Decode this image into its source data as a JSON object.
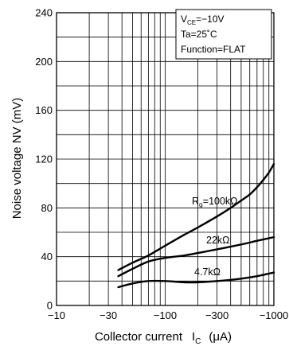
{
  "chart_data": {
    "type": "line",
    "x_scale": "log",
    "x_ticks": [
      -10,
      -30,
      -100,
      -300,
      -1000
    ],
    "x_tick_labels": [
      "−10",
      "−30",
      "−100",
      "−300",
      "−1000"
    ],
    "xlim": [
      -10,
      -1000
    ],
    "ylim": [
      0,
      240
    ],
    "y_ticks": [
      0,
      40,
      80,
      120,
      160,
      200,
      240
    ],
    "y_tick_labels": [
      "0",
      "40",
      "80",
      "120",
      "160",
      "200",
      "240"
    ],
    "xlabel_main": "Collector current",
    "xlabel_symbol": "I",
    "xlabel_subscript": "C",
    "xlabel_unit": "(μA)",
    "ylabel": "Noise voltage  NV  (mV)",
    "grid": true,
    "conditions": {
      "vce_prefix": "V",
      "vce_sub": "CE",
      "vce_value": "=−10V",
      "ta": "Ta=25˚C",
      "function": "Function=FLAT"
    },
    "series": [
      {
        "name_prefix": "R",
        "name_sub": "g",
        "name_value": "=100kΩ",
        "x": [
          -37,
          -50,
          -70,
          -100,
          -150,
          -200,
          -300,
          -400,
          -500,
          -600,
          -700,
          -800,
          -900,
          -1000
        ],
        "y": [
          29,
          35,
          41,
          49,
          58,
          64,
          73,
          80,
          86,
          91,
          97,
          103,
          109,
          116
        ]
      },
      {
        "name": "22kΩ",
        "x": [
          -37,
          -50,
          -70,
          -100,
          -150,
          -200,
          -300,
          -500,
          -700,
          -1000
        ],
        "y": [
          24,
          30,
          36,
          39,
          41,
          43,
          46,
          50,
          53,
          56
        ]
      },
      {
        "name": "4.7kΩ",
        "x": [
          -37,
          -50,
          -70,
          -100,
          -150,
          -200,
          -300,
          -500,
          -700,
          -1000
        ],
        "y": [
          15,
          18,
          20,
          20,
          19,
          19,
          20,
          22,
          24,
          27
        ]
      }
    ]
  }
}
